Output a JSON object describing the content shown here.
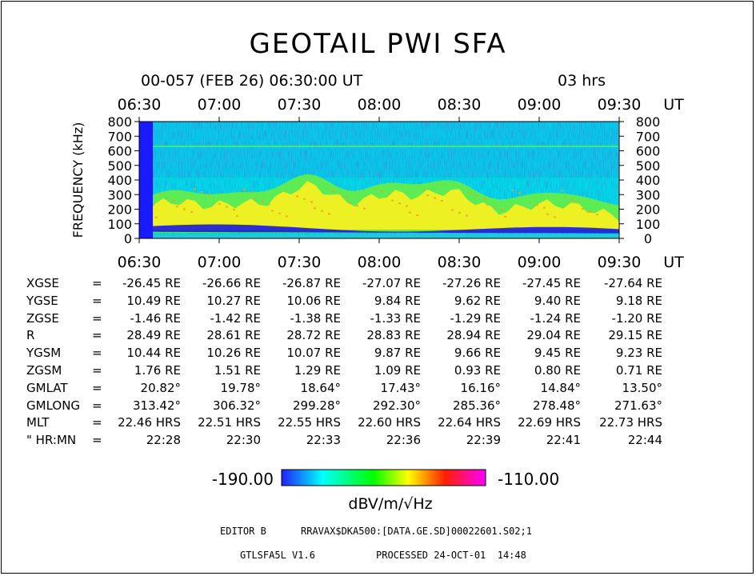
{
  "window": {
    "title": "GEOTAIL PWI SFA"
  },
  "header": {
    "date_line": "00-057 (FEB 26) 06:30:00 UT",
    "duration": "03 hrs",
    "ut_label": "UT"
  },
  "chart_data": {
    "type": "heatmap",
    "title": "GEOTAIL PWI SFA",
    "ylabel": "FREQUENCY (kHz)",
    "xlabel": "UT",
    "x_ticks": [
      "06:30",
      "07:00",
      "07:30",
      "08:00",
      "08:30",
      "09:00",
      "09:30"
    ],
    "y_ticks": [
      0,
      100,
      200,
      300,
      400,
      500,
      600,
      700,
      800
    ],
    "ylim": [
      0,
      800
    ],
    "colorbar": {
      "min": "-190.00",
      "max": "-110.00",
      "unit": "dBV/m/√Hz",
      "colors": [
        "#2020ff",
        "#00ffff",
        "#00ff00",
        "#ffff00",
        "#ff0000",
        "#ff00ff"
      ]
    },
    "features": [
      {
        "name": "emission band",
        "freq_khz": 630
      },
      {
        "name": "intense broadband emission",
        "range_khz": [
          30,
          450
        ]
      },
      {
        "name": "low-frequency dark band",
        "range_khz": [
          40,
          100
        ]
      }
    ]
  },
  "ephemeris": {
    "rows": [
      {
        "label": "XGSE",
        "eq": "=",
        "values": [
          "-26.45 RE",
          "-26.66 RE",
          "-26.87 RE",
          "-27.07 RE",
          "-27.26 RE",
          "-27.45 RE",
          "-27.64 RE"
        ]
      },
      {
        "label": "YGSE",
        "eq": "=",
        "values": [
          "10.49 RE",
          "10.27 RE",
          "10.06 RE",
          "9.84 RE",
          "9.62 RE",
          "9.40 RE",
          "9.18 RE"
        ]
      },
      {
        "label": "ZGSE",
        "eq": "=",
        "values": [
          "-1.46 RE",
          "-1.42 RE",
          "-1.38 RE",
          "-1.33 RE",
          "-1.29 RE",
          "-1.24 RE",
          "-1.20 RE"
        ]
      },
      {
        "label": "R",
        "eq": "=",
        "values": [
          "28.49 RE",
          "28.61 RE",
          "28.72 RE",
          "28.83 RE",
          "28.94 RE",
          "29.04 RE",
          "29.15 RE"
        ]
      },
      {
        "label": "YGSM",
        "eq": "=",
        "values": [
          "10.44 RE",
          "10.26 RE",
          "10.07 RE",
          "9.87 RE",
          "9.66 RE",
          "9.45 RE",
          "9.23 RE"
        ]
      },
      {
        "label": "ZGSM",
        "eq": "=",
        "values": [
          "1.76 RE",
          "1.51 RE",
          "1.29 RE",
          "1.09 RE",
          "0.93 RE",
          "0.80 RE",
          "0.71 RE"
        ]
      },
      {
        "label": "GMLAT",
        "eq": "=",
        "values": [
          "20.82°",
          "19.78°",
          "18.64°",
          "17.43°",
          "16.16°",
          "14.84°",
          "13.50°"
        ]
      },
      {
        "label": "GMLONG",
        "eq": "=",
        "values": [
          "313.42°",
          "306.32°",
          "299.28°",
          "292.30°",
          "285.36°",
          "278.48°",
          "271.63°"
        ]
      },
      {
        "label": "MLT",
        "eq": "=",
        "values": [
          "22.46 HRS",
          "22.51 HRS",
          "22.55 HRS",
          "22.60 HRS",
          "22.64 HRS",
          "22.69 HRS",
          "22.73 HRS"
        ]
      },
      {
        "label": "\" HR:MN",
        "eq": "=",
        "values": [
          "22:28",
          "22:30",
          "22:33",
          "22:36",
          "22:39",
          "22:41",
          "22:44"
        ]
      }
    ]
  },
  "footer": {
    "editor": "EDITOR B",
    "path": "RRAVAX$DKA500:[DATA.GE.SD]00022601.S02;1",
    "program": "GTLSFA5L V1.6",
    "processed": "PROCESSED 24-OCT-01  14:48"
  }
}
